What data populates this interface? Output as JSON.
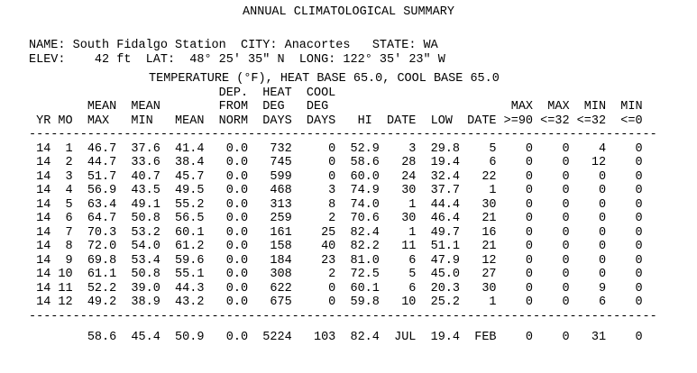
{
  "title": "ANNUAL CLIMATOLOGICAL SUMMARY",
  "station": {
    "name_label": "NAME:",
    "name": "South Fidalgo Station",
    "city_label": "CITY:",
    "city": "Anacortes",
    "state_label": "STATE:",
    "state": "WA",
    "elev_label": "ELEV:",
    "elev": "42 ft",
    "lat_label": "LAT:",
    "lat": "48° 25' 35\" N",
    "long_label": "LONG:",
    "long": "122° 35' 23\" W"
  },
  "section_heading": "TEMPERATURE (°F), HEAT BASE 65.0, COOL BASE 65.0",
  "chart_data": {
    "type": "table",
    "column_keys": [
      "yr",
      "mo",
      "mean-max",
      "mean-min",
      "mean",
      "dep-from-norm",
      "heat-deg-days",
      "cool-deg-days",
      "hi",
      "hi-date",
      "low",
      "low-date",
      "max-ge-90",
      "max-le-32",
      "min-le-32",
      "min-le-0"
    ],
    "header_lines": [
      [
        "",
        "",
        "",
        "",
        "",
        "DEP.",
        "HEAT",
        "COOL",
        "",
        "",
        "",
        "",
        "",
        "",
        "",
        ""
      ],
      [
        "",
        "",
        "MEAN",
        "MEAN",
        "",
        "FROM",
        "DEG",
        "DEG",
        "",
        "",
        "",
        "",
        "MAX",
        "MAX",
        "MIN",
        "MIN"
      ],
      [
        "YR",
        "MO",
        "MAX",
        "MIN",
        "MEAN",
        "NORM",
        "DAYS",
        "DAYS",
        "HI",
        "DATE",
        "LOW",
        "DATE",
        ">=90",
        "<=32",
        "<=32",
        "<=0"
      ]
    ],
    "rows": [
      [
        "14",
        "1",
        "46.7",
        "37.6",
        "41.4",
        "0.0",
        "732",
        "0",
        "52.9",
        "3",
        "29.8",
        "5",
        "0",
        "0",
        "4",
        "0"
      ],
      [
        "14",
        "2",
        "44.7",
        "33.6",
        "38.4",
        "0.0",
        "745",
        "0",
        "58.6",
        "28",
        "19.4",
        "6",
        "0",
        "0",
        "12",
        "0"
      ],
      [
        "14",
        "3",
        "51.7",
        "40.7",
        "45.7",
        "0.0",
        "599",
        "0",
        "60.0",
        "24",
        "32.4",
        "22",
        "0",
        "0",
        "0",
        "0"
      ],
      [
        "14",
        "4",
        "56.9",
        "43.5",
        "49.5",
        "0.0",
        "468",
        "3",
        "74.9",
        "30",
        "37.7",
        "1",
        "0",
        "0",
        "0",
        "0"
      ],
      [
        "14",
        "5",
        "63.4",
        "49.1",
        "55.2",
        "0.0",
        "313",
        "8",
        "74.0",
        "1",
        "44.4",
        "30",
        "0",
        "0",
        "0",
        "0"
      ],
      [
        "14",
        "6",
        "64.7",
        "50.8",
        "56.5",
        "0.0",
        "259",
        "2",
        "70.6",
        "30",
        "46.4",
        "21",
        "0",
        "0",
        "0",
        "0"
      ],
      [
        "14",
        "7",
        "70.3",
        "53.2",
        "60.1",
        "0.0",
        "161",
        "25",
        "82.4",
        "1",
        "49.7",
        "16",
        "0",
        "0",
        "0",
        "0"
      ],
      [
        "14",
        "8",
        "72.0",
        "54.0",
        "61.2",
        "0.0",
        "158",
        "40",
        "82.2",
        "11",
        "51.1",
        "21",
        "0",
        "0",
        "0",
        "0"
      ],
      [
        "14",
        "9",
        "69.8",
        "53.4",
        "59.6",
        "0.0",
        "184",
        "23",
        "81.0",
        "6",
        "47.9",
        "12",
        "0",
        "0",
        "0",
        "0"
      ],
      [
        "14",
        "10",
        "61.1",
        "50.8",
        "55.1",
        "0.0",
        "308",
        "2",
        "72.5",
        "5",
        "45.0",
        "27",
        "0",
        "0",
        "0",
        "0"
      ],
      [
        "14",
        "11",
        "52.2",
        "39.0",
        "44.3",
        "0.0",
        "622",
        "0",
        "60.1",
        "6",
        "20.3",
        "30",
        "0",
        "0",
        "9",
        "0"
      ],
      [
        "14",
        "12",
        "49.2",
        "38.9",
        "43.2",
        "0.0",
        "675",
        "0",
        "59.8",
        "10",
        "25.2",
        "1",
        "0",
        "0",
        "6",
        "0"
      ]
    ],
    "summary": [
      "",
      "",
      "58.6",
      "45.4",
      "50.9",
      "0.0",
      "5224",
      "103",
      "82.4",
      "JUL",
      "19.4",
      "FEB",
      "0",
      "0",
      "31",
      "0"
    ]
  }
}
